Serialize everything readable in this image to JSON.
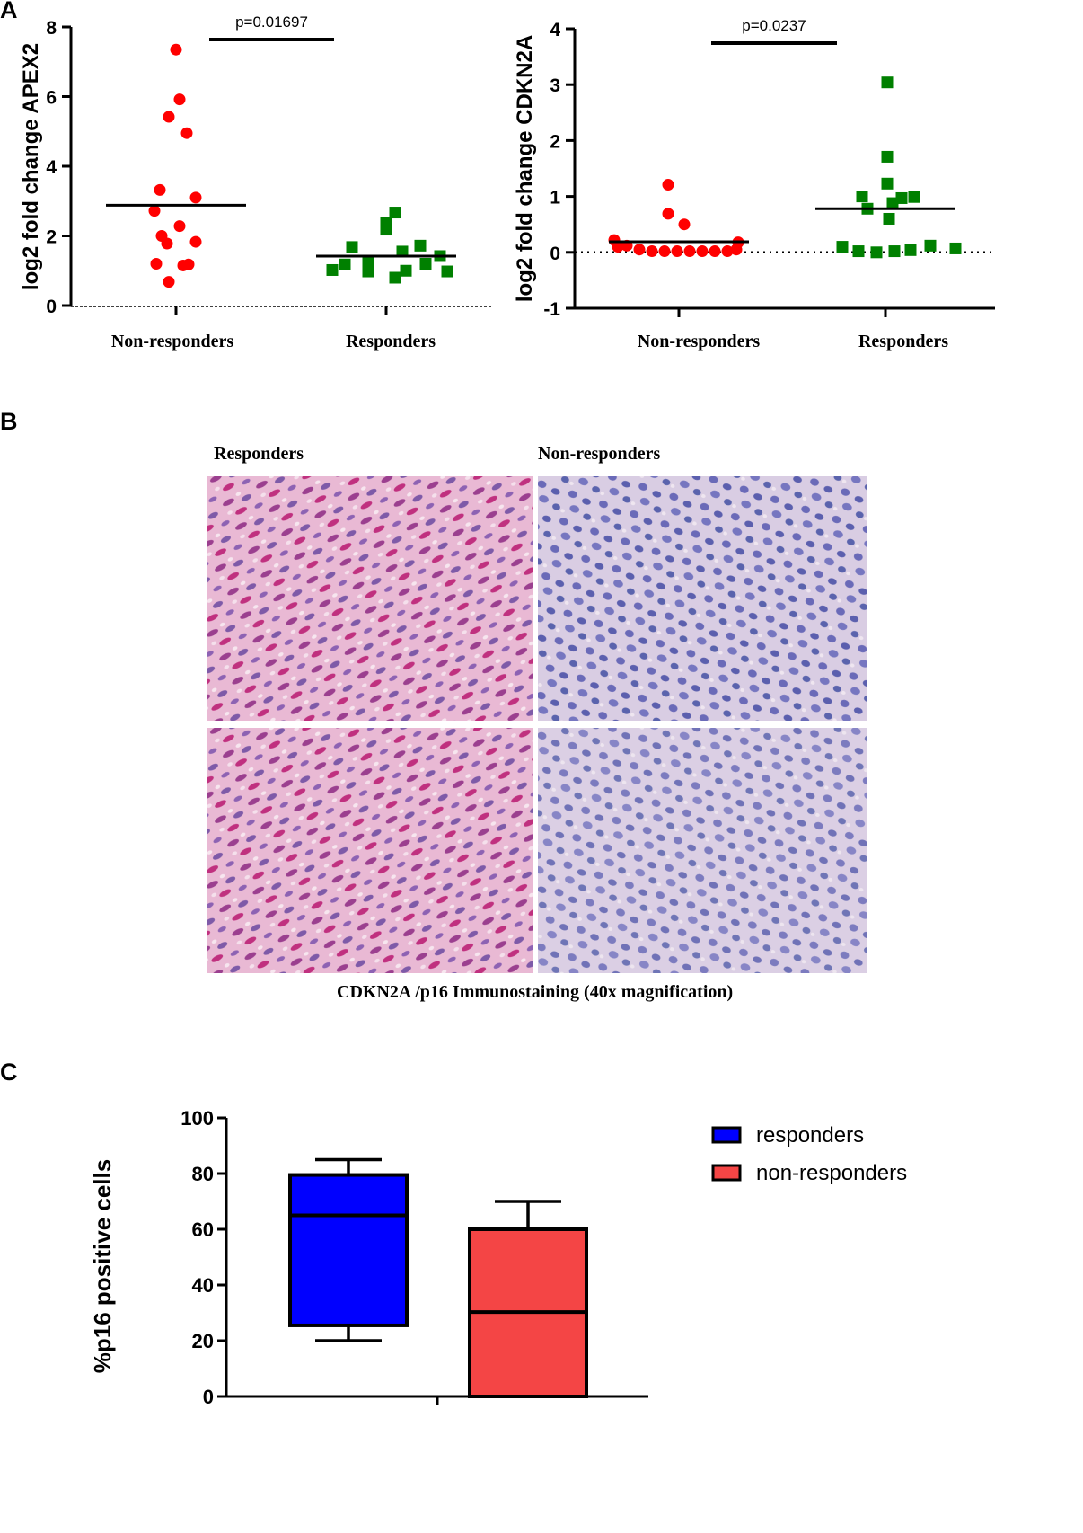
{
  "panels": {
    "a": "A",
    "b": "B",
    "c": "C"
  },
  "chart_data": [
    {
      "id": "apex2",
      "type": "scatter",
      "ylabel": "log2 fold change APEX2",
      "ylim": [
        0,
        8
      ],
      "yticks": [
        0,
        2,
        4,
        6,
        8
      ],
      "categories": [
        "Non-responders",
        "Responders"
      ],
      "annotation": "p=0.01697",
      "series": [
        {
          "category": "Non-responders",
          "marker": "circle",
          "color": "#ff0000",
          "mean": 2.88,
          "values": [
            7.35,
            5.92,
            5.42,
            4.95,
            3.32,
            3.1,
            2.72,
            2.28,
            2.0,
            1.83,
            1.78,
            1.2,
            1.15,
            1.18,
            0.68
          ]
        },
        {
          "category": "Responders",
          "marker": "square",
          "color": "#008000",
          "mean": 1.42,
          "values": [
            2.67,
            2.38,
            2.18,
            1.72,
            1.68,
            1.55,
            1.42,
            1.25,
            1.2,
            1.18,
            1.02,
            0.98,
            1.0,
            0.98,
            0.8
          ]
        }
      ]
    },
    {
      "id": "cdkn2a",
      "type": "scatter",
      "ylabel": "log2 fold change CDKN2A",
      "ylim": [
        -1,
        4
      ],
      "yticks": [
        -1,
        0,
        1,
        2,
        3,
        4
      ],
      "categories": [
        "Non-responders",
        "Responders"
      ],
      "annotation": "p=0.0237",
      "reference_line": 0,
      "series": [
        {
          "category": "Non-responders",
          "marker": "circle",
          "color": "#ff0000",
          "mean": 0.19,
          "values": [
            1.21,
            0.69,
            0.5,
            0.22,
            0.12,
            0.05,
            0.02,
            0.02,
            0.02,
            0.02,
            0.02,
            0.02,
            0.02,
            0.05,
            0.1,
            0.18
          ]
        },
        {
          "category": "Responders",
          "marker": "square",
          "color": "#008000",
          "mean": 0.78,
          "values": [
            3.04,
            1.71,
            1.23,
            1.0,
            0.97,
            0.99,
            0.78,
            0.88,
            0.6,
            0.1,
            0.07,
            0.02,
            0.0,
            0.02,
            0.04,
            0.12
          ]
        }
      ]
    },
    {
      "id": "p16",
      "type": "box",
      "ylabel": "%p16 positive cells",
      "ylim": [
        0,
        100
      ],
      "yticks": [
        0,
        20,
        40,
        60,
        80,
        100
      ],
      "legend": "right",
      "series": [
        {
          "name": "responders",
          "color": "#0000ff",
          "min": 20,
          "q1": 25.5,
          "median": 65,
          "q3": 79.5,
          "max": 85
        },
        {
          "name": "non-responders",
          "color": "#f44545",
          "min": 0,
          "q1": 0,
          "median": 30.3,
          "q3": 60,
          "max": 70
        }
      ]
    }
  ],
  "micrographs": {
    "responders_label": "Responders",
    "nonresponders_label": "Non-responders",
    "caption": "CDKN2A /p16  Immunostaining (40x magnification)"
  }
}
